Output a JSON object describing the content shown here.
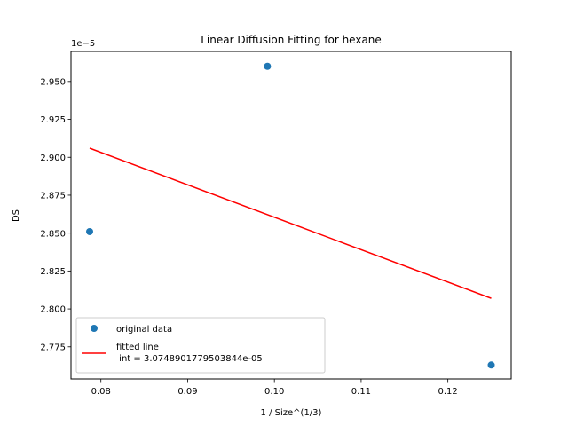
{
  "chart_data": {
    "type": "scatter",
    "title": "Linear Diffusion Fitting for hexane",
    "xlabel": "1 / Size^(1/3)",
    "ylabel": "DS",
    "y_offset_text": "1e−5",
    "xlim": [
      0.07655,
      0.1273
    ],
    "ylim": [
      2.7538,
      2.9698
    ],
    "x_ticks": [
      0.08,
      0.09,
      0.1,
      0.11,
      0.12
    ],
    "x_tick_labels": [
      "0.08",
      "0.09",
      "0.10",
      "0.11",
      "0.12"
    ],
    "y_ticks": [
      2.775,
      2.8,
      2.825,
      2.85,
      2.875,
      2.9,
      2.925,
      2.95
    ],
    "y_tick_labels": [
      "2.775",
      "2.800",
      "2.825",
      "2.850",
      "2.875",
      "2.900",
      "2.925",
      "2.950"
    ],
    "grid": false,
    "legend_position": "lower-left",
    "series": [
      {
        "name": "original data",
        "kind": "scatter",
        "color": "#1f77b4",
        "x": [
          0.0787,
          0.0992,
          0.125
        ],
        "y": [
          2.851,
          2.96,
          2.763
        ]
      },
      {
        "name": "fitted line\n int = 3.0748901779503844e-05",
        "kind": "line",
        "color": "#ff0000",
        "x": [
          0.0787,
          0.125
        ],
        "y": [
          2.906,
          2.807
        ]
      }
    ]
  }
}
